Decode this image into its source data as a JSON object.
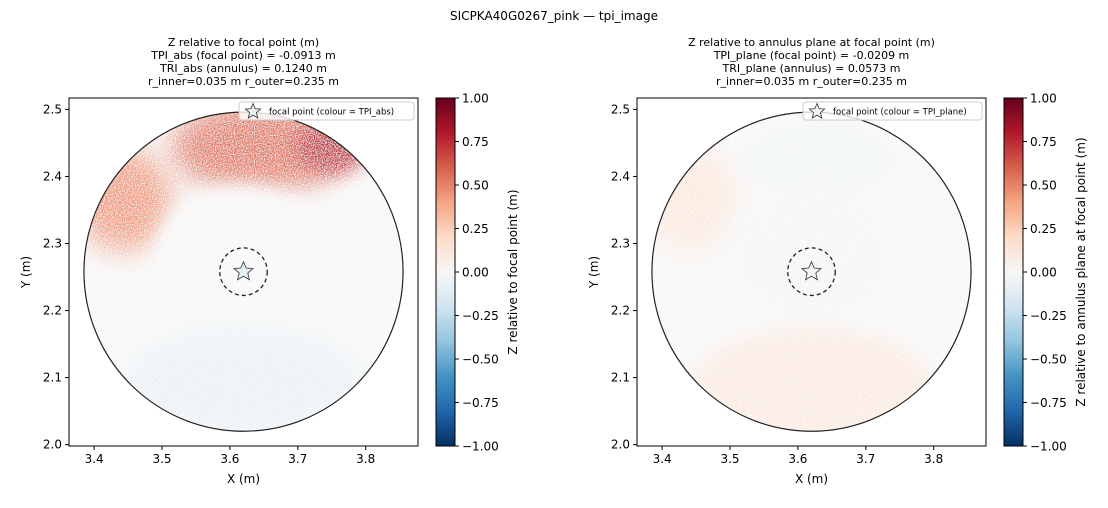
{
  "figure": {
    "suptitle": "SICPKA40G0267_pink — tpi_image"
  },
  "chart_data": [
    {
      "type": "heatmap",
      "title_lines": [
        "Z relative to focal point (m)",
        "TPI_abs (focal point) = -0.0913 m",
        "TRI_abs (annulus) = 0.1240 m",
        "r_inner=0.035 m  r_outer=0.235 m"
      ],
      "xlabel": "X (m)",
      "ylabel": "Y (m)",
      "xlim": [
        3.363,
        3.877
      ],
      "ylim": [
        1.998,
        2.517
      ],
      "xticks": [
        3.4,
        3.5,
        3.6,
        3.7,
        3.8
      ],
      "yticks": [
        2.0,
        2.1,
        2.2,
        2.3,
        2.4,
        2.5
      ],
      "focal_point": {
        "x": 3.62,
        "y": 2.258
      },
      "r_inner": 0.035,
      "r_outer": 0.235,
      "legend": {
        "label": "focal point (colour = TPI_abs)",
        "loc": "upper right"
      },
      "colorbar": {
        "label": "Z relative to focal point (m)",
        "cmap": "RdBu_r",
        "vmin": -1.0,
        "vmax": 1.0,
        "ticks": [
          "1.00",
          "0.75",
          "0.50",
          "0.25",
          "0.00",
          "−0.25",
          "−0.50",
          "−0.75",
          "−1.00"
        ]
      },
      "surface_regions": [
        {
          "region": "north rim",
          "value": 0.55
        },
        {
          "region": "north-east rim",
          "value": 0.75
        },
        {
          "region": "north-west rim",
          "value": 0.45
        },
        {
          "region": "centre",
          "value": 0.0
        },
        {
          "region": "south",
          "value": -0.08
        }
      ],
      "focal_colour_value": -0.0913
    },
    {
      "type": "heatmap",
      "title_lines": [
        "Z relative to annulus plane at focal point (m)",
        "TPI_plane (focal point) = -0.0209 m",
        "TRI_plane (annulus) = 0.0573 m",
        "r_inner=0.035 m  r_outer=0.235 m"
      ],
      "xlabel": "X (m)",
      "ylabel": "Y (m)",
      "xlim": [
        3.363,
        3.877
      ],
      "ylim": [
        1.998,
        2.517
      ],
      "xticks": [
        3.4,
        3.5,
        3.6,
        3.7,
        3.8
      ],
      "yticks": [
        2.0,
        2.1,
        2.2,
        2.3,
        2.4,
        2.5
      ],
      "focal_point": {
        "x": 3.62,
        "y": 2.258
      },
      "r_inner": 0.035,
      "r_outer": 0.235,
      "legend": {
        "label": "focal point (colour = TPI_plane)",
        "loc": "upper right"
      },
      "colorbar": {
        "label": "Z relative to annulus plane at focal point (m)",
        "cmap": "RdBu_r",
        "vmin": -1.0,
        "vmax": 1.0,
        "ticks": [
          "1.00",
          "0.75",
          "0.50",
          "0.25",
          "0.00",
          "−0.25",
          "−0.50",
          "−0.75",
          "−1.00"
        ]
      },
      "surface_regions": [
        {
          "region": "north-west rim",
          "value": 0.12
        },
        {
          "region": "north",
          "value": -0.03
        },
        {
          "region": "centre",
          "value": -0.02
        },
        {
          "region": "south",
          "value": 0.1
        }
      ],
      "focal_colour_value": -0.0209
    }
  ]
}
